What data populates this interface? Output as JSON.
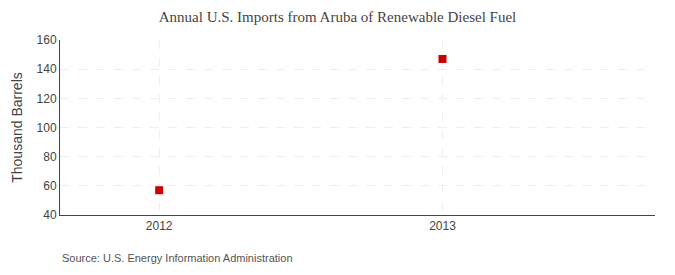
{
  "chart_data": {
    "type": "scatter",
    "title": "Annual U.S. Imports from Aruba of Renewable Diesel Fuel",
    "ylabel": "Thousand Barrels",
    "annotation": "Source: U.S. Energy Information Administration",
    "x": [
      2012,
      2013
    ],
    "values": [
      57,
      147
    ],
    "color": "#cc0000",
    "marker": "square",
    "xlim": [
      2011.65,
      2013.75
    ],
    "xticks": [
      2012,
      2013
    ],
    "ylim": [
      40,
      160
    ],
    "yticks": [
      40,
      60,
      80,
      100,
      120,
      140,
      160
    ],
    "grid": true
  }
}
